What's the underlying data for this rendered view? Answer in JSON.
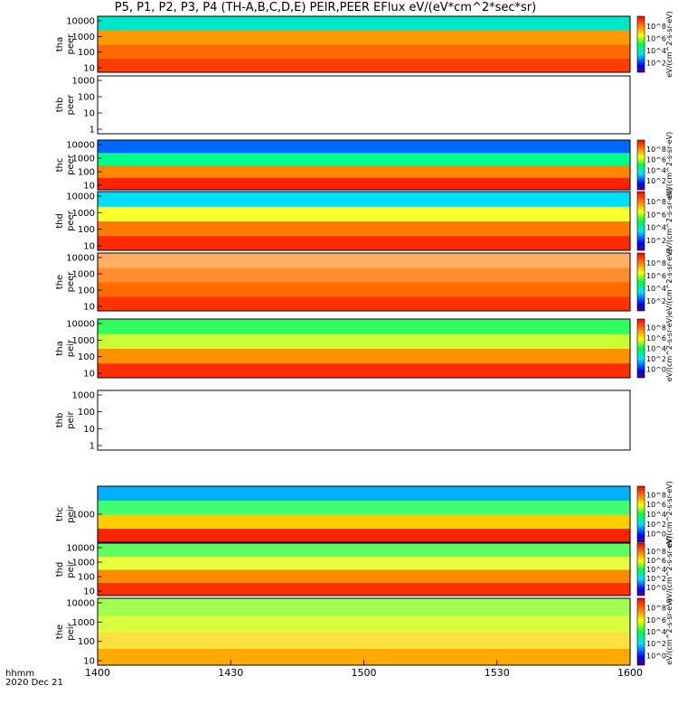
{
  "chart_data": {
    "type": "heatmap",
    "title": "P5, P1, P2, P3, P4 (TH-A,B,C,D,E) PEIR,PEER EFlux eV/(eV*cm^2*sec*sr)",
    "x_ticks": [
      "1400",
      "1430",
      "1500",
      "1530",
      "1600"
    ],
    "x_footer": [
      "hhmm",
      "2020 Dec 21"
    ],
    "colorbar_title": "eV/(cm^2-s-sr-eV)",
    "colorbar_ticks": [
      "10^2",
      "10^4",
      "10^6",
      "10^8"
    ],
    "colorbar_ticks_e": [
      "10^0",
      "10^2",
      "10^4",
      "10^6",
      "10^8"
    ],
    "panels": [
      {
        "label": [
          "tha",
          "peer"
        ],
        "yticks": [
          "10000",
          "1000",
          "100",
          "10"
        ]
      },
      {
        "label": [
          "thb",
          "peer"
        ],
        "yticks": [
          "1000",
          "100",
          "10",
          "1"
        ],
        "empty": true
      },
      {
        "label": [
          "thc",
          "peer"
        ],
        "yticks": [
          "10000",
          "1000",
          "100",
          "10"
        ]
      },
      {
        "label": [
          "thd",
          "peer"
        ],
        "yticks": [
          "10000",
          "1000",
          "100",
          "10"
        ]
      },
      {
        "label": [
          "the",
          "peer"
        ],
        "yticks": [
          "10000",
          "1000",
          "100",
          "10"
        ]
      },
      {
        "label": [
          "tha",
          "peir"
        ],
        "yticks": [
          "10000",
          "1000",
          "100",
          "10"
        ]
      },
      {
        "label": [
          "thb",
          "peir"
        ],
        "yticks": [
          "1000",
          "100",
          "10",
          "1"
        ],
        "empty": true
      },
      {
        "label": [
          "thc",
          "peir"
        ],
        "yticks": [
          "1000"
        ]
      },
      {
        "label": [
          "thd",
          "peir"
        ],
        "yticks": [
          "10000",
          "1000",
          "100",
          "10"
        ]
      },
      {
        "label": [
          "the",
          "peir"
        ],
        "yticks": [
          "10000",
          "1000",
          "100",
          "10"
        ]
      }
    ]
  }
}
